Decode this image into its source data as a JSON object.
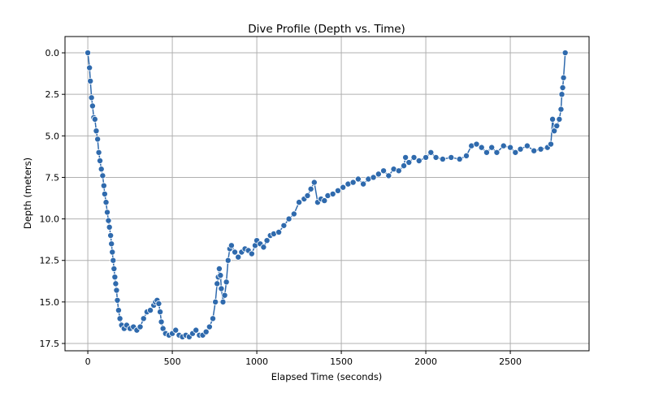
{
  "chart_data": {
    "type": "line",
    "title": "Dive Profile (Depth vs. Time)",
    "xlabel": "Elapsed Time (seconds)",
    "ylabel": "Depth (meters)",
    "xlim": [
      -135,
      2966
    ],
    "ylim": [
      17.94,
      -0.98
    ],
    "y_inverted": true,
    "grid": true,
    "xticks": [
      0,
      500,
      1000,
      1500,
      2000,
      2500
    ],
    "xtick_labels": [
      "0",
      "500",
      "1000",
      "1500",
      "2000",
      "2500"
    ],
    "yticks": [
      0,
      2.5,
      5,
      7.5,
      10,
      12.5,
      15,
      17.5
    ],
    "ytick_labels": [
      "0.0",
      "2.5",
      "5.0",
      "7.5",
      "10.0",
      "12.5",
      "15.0",
      "17.5"
    ],
    "series_color": "#2f6aad",
    "series": [
      {
        "name": "Depth",
        "x": [
          0,
          10,
          15,
          22,
          28,
          35,
          42,
          50,
          58,
          65,
          72,
          80,
          88,
          95,
          100,
          108,
          115,
          122,
          128,
          135,
          140,
          145,
          150,
          155,
          160,
          165,
          170,
          175,
          182,
          190,
          200,
          215,
          230,
          250,
          270,
          290,
          310,
          330,
          350,
          370,
          390,
          400,
          410,
          420,
          428,
          435,
          445,
          460,
          480,
          500,
          520,
          540,
          560,
          580,
          600,
          620,
          640,
          660,
          680,
          700,
          720,
          740,
          755,
          765,
          772,
          778,
          785,
          790,
          800,
          810,
          820,
          830,
          840,
          850,
          870,
          890,
          910,
          930,
          950,
          970,
          990,
          1000,
          1020,
          1040,
          1060,
          1080,
          1100,
          1130,
          1160,
          1190,
          1220,
          1250,
          1280,
          1300,
          1320,
          1340,
          1360,
          1380,
          1400,
          1420,
          1450,
          1480,
          1510,
          1540,
          1570,
          1600,
          1630,
          1660,
          1690,
          1720,
          1750,
          1780,
          1810,
          1840,
          1870,
          1880,
          1900,
          1930,
          1960,
          2000,
          2030,
          2060,
          2100,
          2150,
          2200,
          2240,
          2270,
          2300,
          2330,
          2360,
          2390,
          2420,
          2460,
          2500,
          2530,
          2560,
          2600,
          2640,
          2680,
          2720,
          2740,
          2750,
          2760,
          2775,
          2790,
          2800,
          2805,
          2810,
          2815,
          2825
        ],
        "y": [
          0,
          0.9,
          1.7,
          2.7,
          3.2,
          3.9,
          4.0,
          4.7,
          5.2,
          6.0,
          6.5,
          7.0,
          7.4,
          8.0,
          8.5,
          9.0,
          9.6,
          10.1,
          10.5,
          11.0,
          11.5,
          12.0,
          12.5,
          13.0,
          13.5,
          13.9,
          14.3,
          14.9,
          15.5,
          16.0,
          16.4,
          16.6,
          16.4,
          16.6,
          16.5,
          16.7,
          16.5,
          16.0,
          15.6,
          15.5,
          15.2,
          15.0,
          14.9,
          15.1,
          15.6,
          16.2,
          16.6,
          16.9,
          17.0,
          16.9,
          16.7,
          17.0,
          17.1,
          17.0,
          17.1,
          16.9,
          16.7,
          17.0,
          17.0,
          16.8,
          16.5,
          16.0,
          15.0,
          13.9,
          13.5,
          13.0,
          13.4,
          14.2,
          15.0,
          14.6,
          13.8,
          12.5,
          11.8,
          11.6,
          12.0,
          12.3,
          12.0,
          11.8,
          11.9,
          12.1,
          11.6,
          11.3,
          11.5,
          11.7,
          11.3,
          11.0,
          10.9,
          10.8,
          10.4,
          10.0,
          9.7,
          9.0,
          8.8,
          8.6,
          8.2,
          7.8,
          9.0,
          8.8,
          8.9,
          8.6,
          8.5,
          8.3,
          8.1,
          7.9,
          7.8,
          7.6,
          7.9,
          7.6,
          7.5,
          7.3,
          7.1,
          7.4,
          7.0,
          7.1,
          6.8,
          6.3,
          6.6,
          6.3,
          6.5,
          6.3,
          6.0,
          6.3,
          6.4,
          6.3,
          6.4,
          6.2,
          5.6,
          5.5,
          5.7,
          6.0,
          5.7,
          6.0,
          5.6,
          5.7,
          6.0,
          5.8,
          5.6,
          5.9,
          5.8,
          5.7,
          5.5,
          4.0,
          4.7,
          4.4,
          4.0,
          3.4,
          2.5,
          2.1,
          1.5,
          0.0
        ]
      }
    ]
  }
}
